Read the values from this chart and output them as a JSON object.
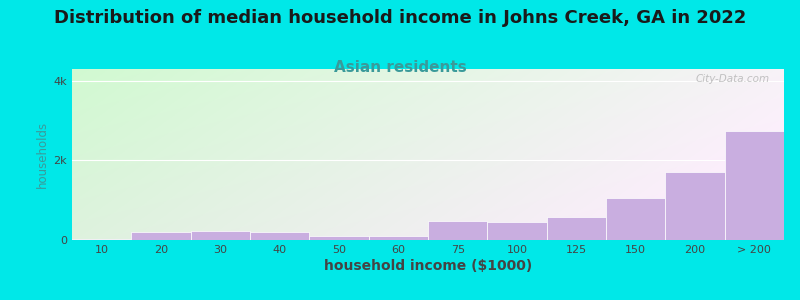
{
  "title": "Distribution of median household income in Johns Creek, GA in 2022",
  "subtitle": "Asian residents",
  "xlabel": "household income ($1000)",
  "ylabel": "households",
  "categories": [
    "10",
    "20",
    "30",
    "40",
    "50",
    "60",
    "75",
    "100",
    "125",
    "150",
    "200",
    "> 200"
  ],
  "values": [
    25,
    200,
    230,
    190,
    110,
    95,
    480,
    450,
    580,
    1050,
    1700,
    2750
  ],
  "bar_color": "#c9aee0",
  "bar_edge_color": "#d0b8e8",
  "background_outer": "#00e8e8",
  "title_fontsize": 13,
  "subtitle_fontsize": 11,
  "subtitle_color": "#3a9a9a",
  "ylabel_color": "#3a9a9a",
  "xlabel_color": "#444444",
  "ytick_labels": [
    "0",
    "2k",
    "4k"
  ],
  "ytick_values": [
    0,
    2000,
    4000
  ],
  "ylim": [
    0,
    4300
  ],
  "watermark": "City-Data.com"
}
